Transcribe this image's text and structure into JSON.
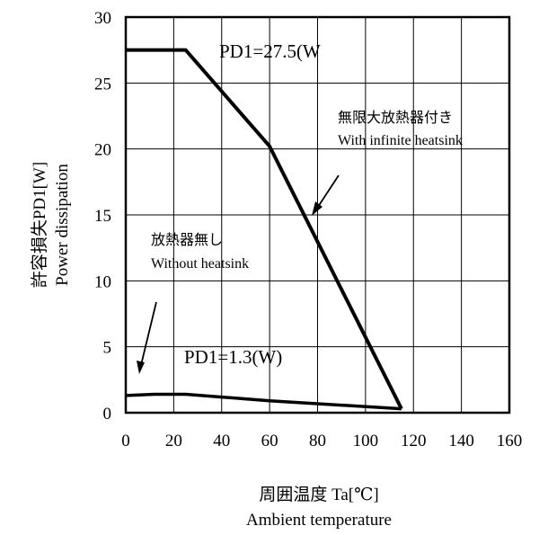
{
  "chart_data": {
    "type": "line",
    "xlabel": "周囲温度 Ta[℃]",
    "xlabel_en": "Ambient temperature",
    "ylabel": "許容損失PD1[W]",
    "ylabel_en": "Power dissipation",
    "xlim": [
      0,
      160
    ],
    "ylim": [
      0,
      30
    ],
    "x_ticks": [
      "0",
      "20",
      "40",
      "60",
      "80",
      "100",
      "120",
      "140",
      "160"
    ],
    "y_ticks": [
      "0",
      "5",
      "10",
      "15",
      "20",
      "25",
      "30"
    ],
    "grid": true,
    "series": [
      {
        "name": "無限大放熱器付き With infinite heatsink",
        "x": [
          0,
          25,
          60,
          115
        ],
        "y": [
          27.5,
          27.5,
          20.2,
          0.3
        ]
      },
      {
        "name": "放熱器無し Without heatsink",
        "x": [
          0,
          12,
          25,
          60,
          115
        ],
        "y": [
          1.3,
          1.4,
          1.4,
          0.9,
          0.3
        ]
      }
    ],
    "annotations": {
      "pd_high": "PD1=27.5(W",
      "pd_low": "PD1=1.3(W)",
      "heatsink_jp": "無限大放熱器付き",
      "heatsink_en": "With infinite heatsink",
      "noheatsink_jp": "放熱器無し",
      "noheatsink_en": "Without heatsink"
    }
  }
}
